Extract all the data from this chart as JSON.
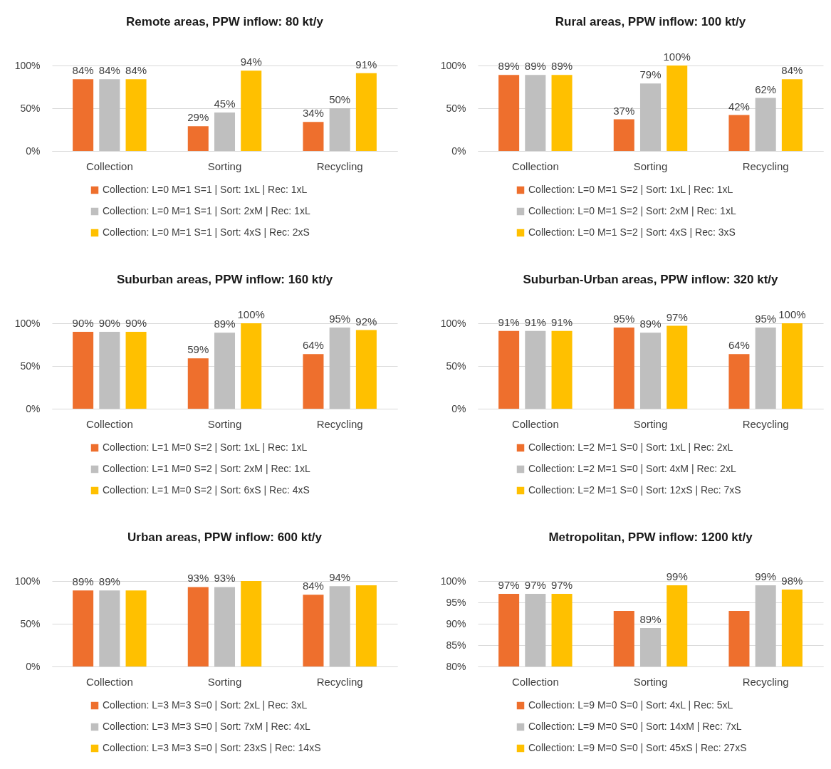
{
  "chart_data": [
    {
      "type": "bar",
      "title": "Remote areas, PPW inflow: 80 kt/y",
      "categories": [
        "Collection",
        "Sorting",
        "Recycling"
      ],
      "ylim": [
        0,
        100
      ],
      "yticks": [
        {
          "value": 0,
          "label": "0%"
        },
        {
          "value": 50,
          "label": "50%"
        },
        {
          "value": 100,
          "label": "100%"
        }
      ],
      "grid": "y",
      "legend": "bottom",
      "series": [
        {
          "name": "Collection: L=0 M=1 S=1 | Sort: 1xL | Rec: 1xL",
          "color": "#ee6f2d",
          "values": [
            84,
            29,
            34
          ],
          "value_labels": [
            "84%",
            "29%",
            "34%"
          ]
        },
        {
          "name": "Collection: L=0 M=1 S=1 | Sort: 2xM | Rec: 1xL",
          "color": "#bfbfbf",
          "values": [
            84,
            45,
            50
          ],
          "value_labels": [
            "84%",
            "45%",
            "50%"
          ]
        },
        {
          "name": "Collection: L=0 M=1 S=1 | Sort: 4xS | Rec: 2xS",
          "color": "#ffc000",
          "values": [
            84,
            94,
            91
          ],
          "value_labels": [
            "84%",
            "94%",
            "91%"
          ]
        }
      ]
    },
    {
      "type": "bar",
      "title": "Rural areas, PPW inflow: 100 kt/y",
      "categories": [
        "Collection",
        "Sorting",
        "Recycling"
      ],
      "ylim": [
        0,
        100
      ],
      "yticks": [
        {
          "value": 0,
          "label": "0%"
        },
        {
          "value": 50,
          "label": "50%"
        },
        {
          "value": 100,
          "label": "100%"
        }
      ],
      "grid": "y",
      "legend": "bottom",
      "series": [
        {
          "name": "Collection: L=0 M=1 S=2 | Sort: 1xL | Rec: 1xL",
          "color": "#ee6f2d",
          "values": [
            89,
            37,
            42
          ],
          "value_labels": [
            "89%",
            "37%",
            "42%"
          ]
        },
        {
          "name": "Collection: L=0 M=1 S=2 | Sort: 2xM | Rec: 1xL",
          "color": "#bfbfbf",
          "values": [
            89,
            79,
            62
          ],
          "value_labels": [
            "89%",
            "79%",
            "62%"
          ]
        },
        {
          "name": "Collection: L=0 M=1 S=2 | Sort: 4xS | Rec: 3xS",
          "color": "#ffc000",
          "values": [
            89,
            100,
            84
          ],
          "value_labels": [
            "89%",
            "100%",
            "84%"
          ]
        }
      ]
    },
    {
      "type": "bar",
      "title": "Suburban areas, PPW inflow: 160 kt/y",
      "categories": [
        "Collection",
        "Sorting",
        "Recycling"
      ],
      "ylim": [
        0,
        100
      ],
      "yticks": [
        {
          "value": 0,
          "label": "0%"
        },
        {
          "value": 50,
          "label": "50%"
        },
        {
          "value": 100,
          "label": "100%"
        }
      ],
      "grid": "y",
      "legend": "bottom",
      "series": [
        {
          "name": "Collection: L=1 M=0 S=2 | Sort: 1xL | Rec: 1xL",
          "color": "#ee6f2d",
          "values": [
            90,
            59,
            64
          ],
          "value_labels": [
            "90%",
            "59%",
            "64%"
          ]
        },
        {
          "name": "Collection: L=1 M=0 S=2 | Sort: 2xM | Rec: 1xL",
          "color": "#bfbfbf",
          "values": [
            90,
            89,
            95
          ],
          "value_labels": [
            "90%",
            "89%",
            "95%"
          ]
        },
        {
          "name": "Collection: L=1 M=0 S=2 | Sort: 6xS | Rec: 4xS",
          "color": "#ffc000",
          "values": [
            90,
            100,
            92
          ],
          "value_labels": [
            "90%",
            "100%",
            "92%"
          ]
        }
      ]
    },
    {
      "type": "bar",
      "title": "Suburban-Urban areas, PPW inflow: 320 kt/y",
      "categories": [
        "Collection",
        "Sorting",
        "Recycling"
      ],
      "ylim": [
        0,
        100
      ],
      "yticks": [
        {
          "value": 0,
          "label": "0%"
        },
        {
          "value": 50,
          "label": "50%"
        },
        {
          "value": 100,
          "label": "100%"
        }
      ],
      "grid": "y",
      "legend": "bottom",
      "series": [
        {
          "name": "Collection: L=2 M=1 S=0 | Sort: 1xL | Rec: 2xL",
          "color": "#ee6f2d",
          "values": [
            91,
            95,
            64
          ],
          "value_labels": [
            "91%",
            "95%",
            "64%"
          ]
        },
        {
          "name": "Collection: L=2 M=1 S=0 | Sort: 4xM | Rec: 2xL",
          "color": "#bfbfbf",
          "values": [
            91,
            89,
            95
          ],
          "value_labels": [
            "91%",
            "89%",
            "95%"
          ]
        },
        {
          "name": "Collection: L=2 M=1 S=0 | Sort: 12xS | Rec: 7xS",
          "color": "#ffc000",
          "values": [
            91,
            97,
            100
          ],
          "value_labels": [
            "91%",
            "97%",
            "100%"
          ]
        }
      ]
    },
    {
      "type": "bar",
      "title": "Urban areas, PPW inflow: 600 kt/y",
      "categories": [
        "Collection",
        "Sorting",
        "Recycling"
      ],
      "ylim": [
        0,
        100
      ],
      "yticks": [
        {
          "value": 0,
          "label": "0%"
        },
        {
          "value": 50,
          "label": "50%"
        },
        {
          "value": 100,
          "label": "100%"
        }
      ],
      "grid": "y",
      "legend": "bottom",
      "series": [
        {
          "name": "Collection: L=3 M=3 S=0 | Sort: 2xL | Rec: 3xL",
          "color": "#ee6f2d",
          "values": [
            89,
            93,
            84
          ],
          "value_labels": [
            "89%",
            "93%",
            "84%"
          ]
        },
        {
          "name": "Collection: L=3 M=3 S=0 | Sort: 7xM | Rec: 4xL",
          "color": "#bfbfbf",
          "values": [
            89,
            93,
            94
          ],
          "value_labels": [
            "89%",
            "93%",
            "94%"
          ]
        },
        {
          "name": "Collection: L=3 M=3 S=0 | Sort: 23xS | Rec: 14xS",
          "color": "#ffc000",
          "values": [
            89,
            100,
            95
          ],
          "value_labels": [
            null,
            null,
            null
          ]
        }
      ]
    },
    {
      "type": "bar",
      "title": "Metropolitan, PPW inflow: 1200 kt/y",
      "categories": [
        "Collection",
        "Sorting",
        "Recycling"
      ],
      "ylim": [
        80,
        100
      ],
      "yticks": [
        {
          "value": 80,
          "label": "80%"
        },
        {
          "value": 85,
          "label": "85%"
        },
        {
          "value": 90,
          "label": "90%"
        },
        {
          "value": 95,
          "label": "95%"
        },
        {
          "value": 100,
          "label": "100%"
        }
      ],
      "grid": "y",
      "legend": "bottom",
      "series": [
        {
          "name": "Collection: L=9 M=0 S=0 | Sort: 4xL | Rec: 5xL",
          "color": "#ee6f2d",
          "values": [
            97,
            93,
            93
          ],
          "value_labels": [
            "97%",
            null,
            null
          ]
        },
        {
          "name": "Collection: L=9 M=0 S=0 | Sort: 14xM | Rec: 7xL",
          "color": "#bfbfbf",
          "values": [
            97,
            89,
            99
          ],
          "value_labels": [
            "97%",
            "89%",
            "99%"
          ]
        },
        {
          "name": "Collection: L=9 M=0 S=0 | Sort: 45xS | Rec: 27xS",
          "color": "#ffc000",
          "values": [
            97,
            99,
            98
          ],
          "value_labels": [
            "97%",
            "99%",
            "98%"
          ]
        }
      ]
    }
  ]
}
